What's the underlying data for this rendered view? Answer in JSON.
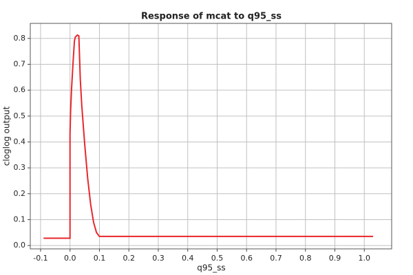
{
  "chart_data": {
    "type": "line",
    "title": "Response of mcat to q95_ss",
    "x_label": "q95_ss",
    "y_label": "cloglog output",
    "x": [
      -0.09,
      0.0,
      0.0,
      0.002,
      0.005,
      0.01,
      0.015,
      0.018,
      0.025,
      0.03,
      0.035,
      0.04,
      0.05,
      0.06,
      0.07,
      0.08,
      0.09,
      0.1,
      1.03
    ],
    "series": [
      {
        "name": "mcat",
        "color": "#e8262b",
        "values": [
          0.028,
          0.028,
          0.43,
          0.52,
          0.6,
          0.7,
          0.79,
          0.805,
          0.813,
          0.81,
          0.64,
          0.54,
          0.39,
          0.26,
          0.16,
          0.09,
          0.05,
          0.035,
          0.035
        ]
      }
    ],
    "xlim": [
      -0.135,
      1.093
    ],
    "ylim": [
      -0.013,
      0.858
    ],
    "xticks": [
      -0.1,
      {
        "value": 0,
        "label": "0.0"
      },
      0.1,
      0.2,
      0.3,
      0.4,
      0.5,
      0.6,
      0.7,
      0.8,
      0.9,
      {
        "value": 1,
        "label": "1.0"
      }
    ],
    "yticks": [
      {
        "value": 0,
        "label": "0.0"
      },
      0.1,
      0.2,
      0.3,
      0.4,
      0.5,
      0.6,
      0.7,
      0.8
    ],
    "grid": true
  }
}
